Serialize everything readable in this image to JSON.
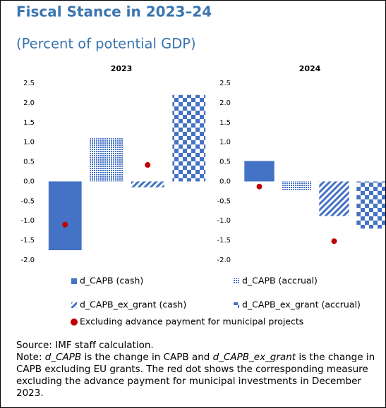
{
  "chart_data": {
    "type": "bar",
    "title": "Fiscal Stance in 2023–24",
    "subtitle": "(Percent of potential GDP)",
    "categories": [
      "2023",
      "2024"
    ],
    "series": [
      {
        "name": "d_CAPB (cash)",
        "color": "#4472c4",
        "pattern": "solid",
        "values": [
          -1.75,
          0.52
        ]
      },
      {
        "name": "d_CAPB (accrual)",
        "color": "#4472c4",
        "pattern": "dots",
        "values": [
          1.1,
          -0.22
        ]
      },
      {
        "name": "d_CAPB_ex_grant (cash)",
        "color": "#4472c4",
        "pattern": "stripes",
        "values": [
          -0.15,
          -0.88
        ]
      },
      {
        "name": "d_CAPB_ex_grant (accrual)",
        "color": "#4472c4",
        "pattern": "checker",
        "values": [
          2.2,
          -1.2
        ]
      },
      {
        "name": "Excluding advance payment for municipal projects",
        "color": "#c00000",
        "type": "dot",
        "values": [
          [
            -1.1,
            null,
            0.42,
            null
          ],
          [
            -0.13,
            null,
            -1.52,
            null
          ]
        ]
      }
    ],
    "ylim": [
      -2,
      2.5
    ],
    "yticks": [
      2.5,
      {
        "value": 2,
        "label": "2.0"
      },
      1.5,
      {
        "value": 1,
        "label": "1.0"
      },
      0.5,
      {
        "value": 0,
        "label": "0.0"
      },
      -0.5,
      {
        "value": -1,
        "label": "-1.0"
      },
      -1.5,
      {
        "value": -2,
        "label": "-2.0"
      }
    ],
    "source": "Source: IMF staff calculation.",
    "note": [
      "Note: ",
      "d_CAPB",
      " is the change in CAPB and ",
      "d_CAPB_ex_grant",
      " is the change in CAPB excluding EU grants. The red dot shows the corresponding measure excluding the advance payment for municipal investments in December 2023."
    ]
  }
}
